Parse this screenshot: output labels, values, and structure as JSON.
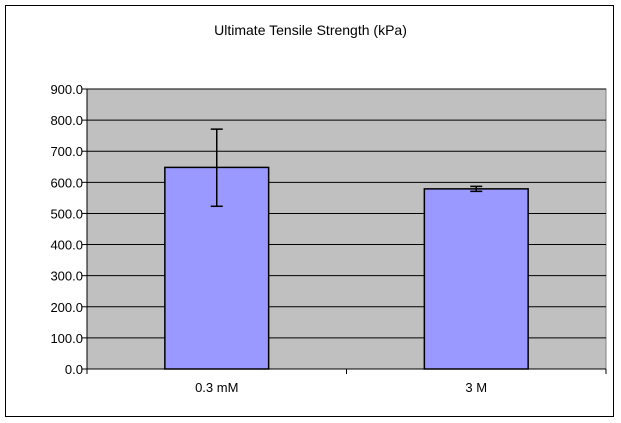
{
  "chart_data": {
    "type": "bar",
    "title": "Ultimate Tensile Strength (kPa)",
    "xlabel": "",
    "ylabel": "",
    "categories": [
      "0.3 mM",
      "3 M"
    ],
    "values": [
      648,
      579
    ],
    "error_bars": [
      {
        "lower": 523,
        "upper": 771
      },
      {
        "lower": 571,
        "upper": 587
      }
    ],
    "ylim": [
      0,
      900
    ],
    "yticks": [
      0,
      100,
      200,
      300,
      400,
      500,
      600,
      700,
      800,
      900
    ],
    "ytick_labels": [
      "0.0",
      "100.0",
      "200.0",
      "300.0",
      "400.0",
      "500.0",
      "600.0",
      "700.0",
      "800.0",
      "900.0"
    ],
    "grid": true,
    "legend": "none",
    "colors": {
      "bar_fill": "#9999ff",
      "plot_background": "#c0c0c0",
      "gridline": "#000000"
    }
  }
}
